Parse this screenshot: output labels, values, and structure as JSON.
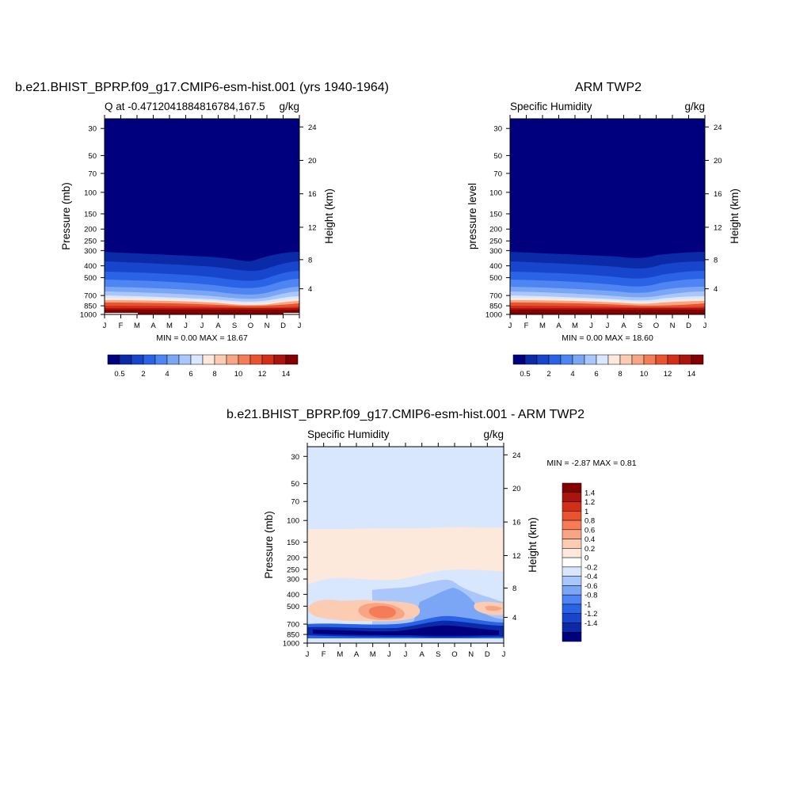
{
  "panels": [
    {
      "title": "b.e21.BHIST_BPRP.f09_g17.CMIP6-esm-hist.001 (yrs 1940-1964)",
      "left_label": "Q at -0.4712041884816784,167.5",
      "right_label": "g/kg",
      "ylabel": "Pressure (mb)",
      "ylabel_right": "Height (km)",
      "stats": "MIN =   0.00 MAX =  18.67"
    },
    {
      "title": "ARM TWP2",
      "left_label": "Specific Humidity",
      "right_label": "g/kg",
      "ylabel": "pressure level",
      "ylabel_right": "Height (km)",
      "stats": "MIN =   0.00 MAX =  18.60"
    },
    {
      "title": "b.e21.BHIST_BPRP.f09_g17.CMIP6-esm-hist.001 - ARM TWP2",
      "left_label": "Specific Humidity",
      "right_label": "g/kg",
      "ylabel": "Pressure (mb)",
      "ylabel_right": "Height (km)",
      "stats": "MIN =  -2.87 MAX =   0.81"
    }
  ],
  "chart_data": [
    {
      "type": "heatmap",
      "title": "b.e21.BHIST_BPRP.f09_g17.CMIP6-esm-hist.001 (yrs 1940-1964)",
      "subtitle": "Q at -0.4712041884816784,167.5",
      "units": "g/kg",
      "ylabel": "Pressure (mb)",
      "ylabel_right": "Height (km)",
      "x_ticks": [
        "J",
        "F",
        "M",
        "A",
        "M",
        "J",
        "J",
        "A",
        "S",
        "O",
        "N",
        "D",
        "J"
      ],
      "y_ticks": [
        30,
        50,
        70,
        100,
        150,
        200,
        250,
        300,
        400,
        500,
        700,
        850,
        1000
      ],
      "y_right_ticks": [
        24,
        20,
        16,
        12,
        8,
        4
      ],
      "y_scale": "log",
      "min": 0.0,
      "max": 18.67,
      "colorbar": {
        "orientation": "horizontal",
        "levels": [
          0.5,
          1,
          2,
          3,
          4,
          5,
          6,
          7,
          8,
          9,
          10,
          11,
          12,
          13,
          14
        ],
        "labels": [
          "0.5",
          "2",
          "4",
          "6",
          "8",
          "10",
          "12",
          "14"
        ],
        "colors": [
          "#00007f",
          "#0a2aa8",
          "#1746cc",
          "#2b63e6",
          "#4f85f2",
          "#7ba6f6",
          "#a9c7fa",
          "#d8e7fd",
          "#fde8dc",
          "#fbcbb2",
          "#f8a585",
          "#f47d57",
          "#ea5330",
          "#d22f18",
          "#a9140c",
          "#820000"
        ]
      }
    },
    {
      "type": "heatmap",
      "title": "ARM TWP2",
      "subtitle": "Specific Humidity",
      "units": "g/kg",
      "ylabel": "pressure level",
      "ylabel_right": "Height (km)",
      "x_ticks": [
        "J",
        "F",
        "M",
        "A",
        "M",
        "J",
        "J",
        "A",
        "S",
        "O",
        "N",
        "D",
        "J"
      ],
      "y_ticks": [
        30,
        50,
        70,
        100,
        150,
        200,
        250,
        300,
        400,
        500,
        700,
        850,
        1000
      ],
      "y_right_ticks": [
        24,
        20,
        16,
        12,
        8,
        4
      ],
      "y_scale": "log",
      "min": 0.0,
      "max": 18.6,
      "colorbar": {
        "orientation": "horizontal",
        "levels": [
          0.5,
          1,
          2,
          3,
          4,
          5,
          6,
          7,
          8,
          9,
          10,
          11,
          12,
          13,
          14
        ],
        "labels": [
          "0.5",
          "2",
          "4",
          "6",
          "8",
          "10",
          "12",
          "14"
        ],
        "colors": [
          "#00007f",
          "#0a2aa8",
          "#1746cc",
          "#2b63e6",
          "#4f85f2",
          "#7ba6f6",
          "#a9c7fa",
          "#d8e7fd",
          "#fde8dc",
          "#fbcbb2",
          "#f8a585",
          "#f47d57",
          "#ea5330",
          "#d22f18",
          "#a9140c",
          "#820000"
        ]
      }
    },
    {
      "type": "heatmap",
      "title": "b.e21.BHIST_BPRP.f09_g17.CMIP6-esm-hist.001 - ARM TWP2",
      "subtitle": "Specific Humidity",
      "units": "g/kg",
      "ylabel": "Pressure (mb)",
      "ylabel_right": "Height (km)",
      "x_ticks": [
        "J",
        "F",
        "M",
        "A",
        "M",
        "J",
        "J",
        "A",
        "S",
        "O",
        "N",
        "D",
        "J"
      ],
      "y_ticks": [
        30,
        50,
        70,
        100,
        150,
        200,
        250,
        300,
        400,
        500,
        700,
        850,
        1000
      ],
      "y_right_ticks": [
        24,
        20,
        16,
        12,
        8,
        4
      ],
      "y_scale": "log",
      "min": -2.87,
      "max": 0.81,
      "colorbar": {
        "orientation": "vertical",
        "levels": [
          1.4,
          1.2,
          1,
          0.8,
          0.6,
          0.4,
          0.2,
          0,
          -0.2,
          -0.4,
          -0.6,
          -0.8,
          -1,
          -1.2,
          -1.4
        ],
        "labels": [
          "1.4",
          "1.2",
          "1",
          "0.8",
          "0.6",
          "0.4",
          "0.2",
          "0",
          "-0.2",
          "-0.4",
          "-0.6",
          "-0.8",
          "-1",
          "-1.2",
          "-1.4"
        ],
        "colors": [
          "#820000",
          "#a9140c",
          "#d22f18",
          "#ea5330",
          "#f47d57",
          "#f8a585",
          "#fbcbb2",
          "#fde8dc",
          "#ffffff",
          "#d8e7fd",
          "#a9c7fa",
          "#7ba6f6",
          "#4f85f2",
          "#2b63e6",
          "#1746cc",
          "#0a2aa8",
          "#00007f"
        ]
      }
    }
  ]
}
